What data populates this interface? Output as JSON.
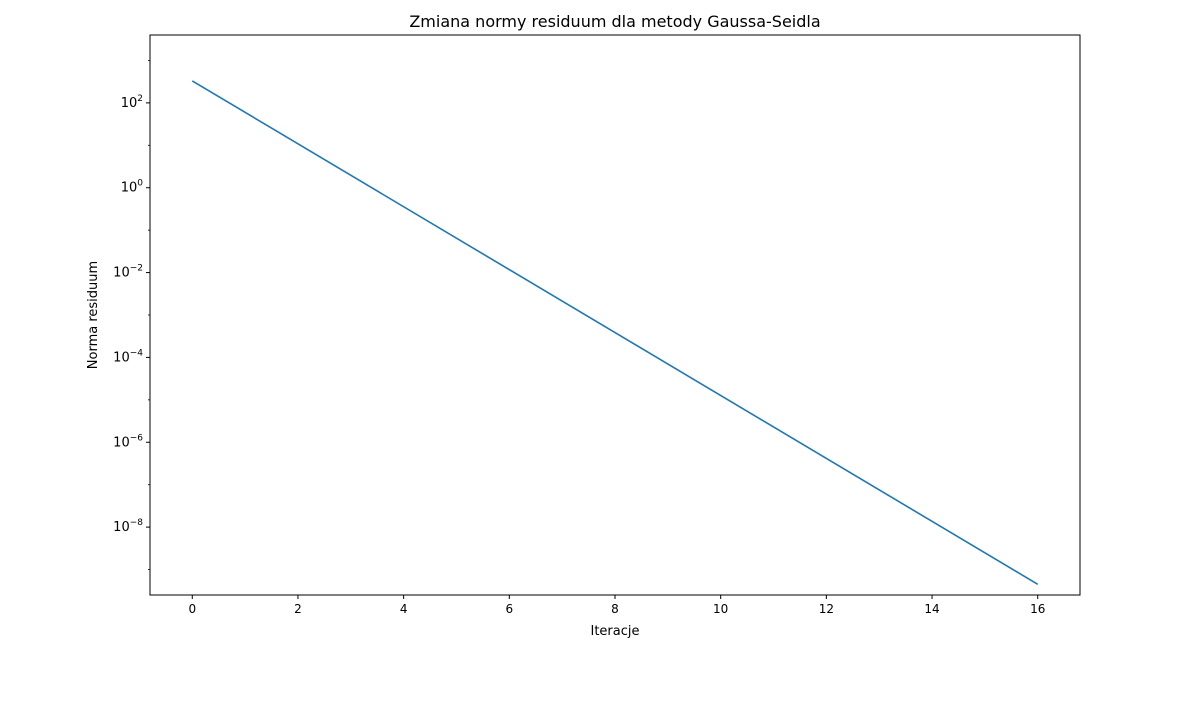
{
  "chart_data": {
    "type": "line",
    "title": "Zmiana normy residuum dla metody Gaussa-Seidla",
    "xlabel": "Iteracje",
    "ylabel": "Norma residuum",
    "yscale": "log",
    "xlim": [
      -0.8,
      16.8
    ],
    "ylim_log10": [
      -9.6,
      3.6
    ],
    "xticks": [
      0,
      2,
      4,
      6,
      8,
      10,
      12,
      14,
      16
    ],
    "yticks": [
      {
        "base": "10",
        "exp": "2",
        "log10": 2
      },
      {
        "base": "10",
        "exp": "0",
        "log10": 0
      },
      {
        "base": "10",
        "exp": "−2",
        "log10": -2
      },
      {
        "base": "10",
        "exp": "−4",
        "log10": -4
      },
      {
        "base": "10",
        "exp": "−6",
        "log10": -6
      },
      {
        "base": "10",
        "exp": "−8",
        "log10": -8
      }
    ],
    "grid": false,
    "colors": {
      "series": "#1f77b4"
    },
    "series": [
      {
        "x": [
          0,
          16
        ],
        "y": [
          330,
          4.5e-10
        ]
      }
    ]
  }
}
